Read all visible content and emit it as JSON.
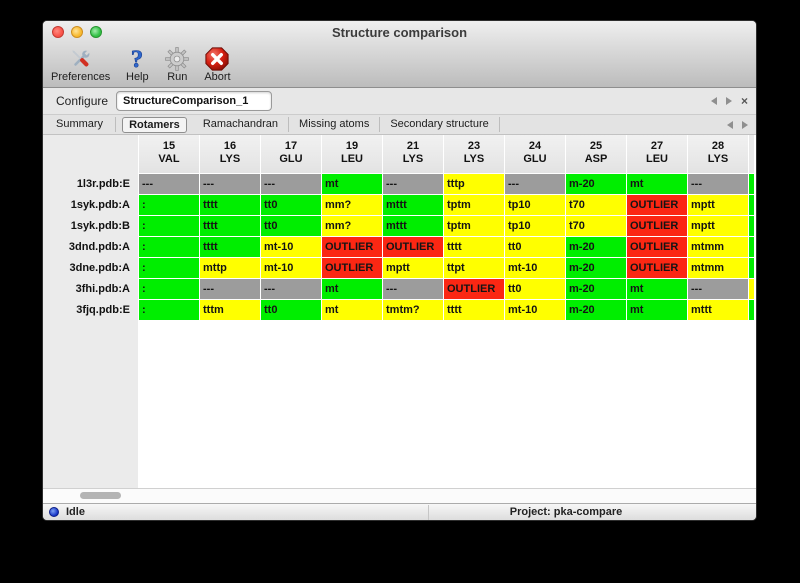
{
  "window": {
    "title": "Structure comparison"
  },
  "toolbar": {
    "items": [
      {
        "label": "Preferences",
        "icon": "tools-icon"
      },
      {
        "label": "Help",
        "icon": "question-icon"
      },
      {
        "label": "Run",
        "icon": "gear-icon"
      },
      {
        "label": "Abort",
        "icon": "abort-icon"
      }
    ]
  },
  "configure": {
    "label": "Configure",
    "value": "StructureComparison_1",
    "close_glyph": "×"
  },
  "tabs": {
    "items": [
      "Summary",
      "Rotamers",
      "Ramachandran",
      "Missing atoms",
      "Secondary structure"
    ],
    "selected": "Rotamers"
  },
  "colors": {
    "green": "#00ee00",
    "yellow": "#ffff00",
    "red": "#fb2713",
    "gray": "#9c9c9c",
    "header": "#e8e8e8"
  },
  "table": {
    "columns": [
      {
        "num": "15",
        "res": "VAL"
      },
      {
        "num": "16",
        "res": "LYS"
      },
      {
        "num": "17",
        "res": "GLU"
      },
      {
        "num": "19",
        "res": "LEU"
      },
      {
        "num": "21",
        "res": "LYS"
      },
      {
        "num": "23",
        "res": "LYS"
      },
      {
        "num": "24",
        "res": "GLU"
      },
      {
        "num": "25",
        "res": "ASP"
      },
      {
        "num": "27",
        "res": "LEU"
      },
      {
        "num": "28",
        "res": "LYS"
      }
    ],
    "rows": [
      {
        "label": "1l3r.pdb:E",
        "cells": [
          {
            "text": "---",
            "color": "gray"
          },
          {
            "text": "---",
            "color": "gray"
          },
          {
            "text": "---",
            "color": "gray"
          },
          {
            "text": "mt",
            "color": "green"
          },
          {
            "text": "---",
            "color": "gray"
          },
          {
            "text": "tttp",
            "color": "yellow"
          },
          {
            "text": "---",
            "color": "gray"
          },
          {
            "text": "m-20",
            "color": "green"
          },
          {
            "text": "mt",
            "color": "green"
          },
          {
            "text": "---",
            "color": "gray"
          }
        ]
      },
      {
        "label": "1syk.pdb:A",
        "cells": [
          {
            "text": ":",
            "color": "green"
          },
          {
            "text": "tttt",
            "color": "green"
          },
          {
            "text": "tt0",
            "color": "green"
          },
          {
            "text": "mm?",
            "color": "yellow"
          },
          {
            "text": "mttt",
            "color": "green"
          },
          {
            "text": "tptm",
            "color": "yellow"
          },
          {
            "text": "tp10",
            "color": "yellow"
          },
          {
            "text": "t70",
            "color": "yellow"
          },
          {
            "text": "OUTLIER",
            "color": "red"
          },
          {
            "text": "mptt",
            "color": "yellow"
          }
        ]
      },
      {
        "label": "1syk.pdb:B",
        "cells": [
          {
            "text": ":",
            "color": "green"
          },
          {
            "text": "tttt",
            "color": "green"
          },
          {
            "text": "tt0",
            "color": "green"
          },
          {
            "text": "mm?",
            "color": "yellow"
          },
          {
            "text": "mttt",
            "color": "green"
          },
          {
            "text": "tptm",
            "color": "yellow"
          },
          {
            "text": "tp10",
            "color": "yellow"
          },
          {
            "text": "t70",
            "color": "yellow"
          },
          {
            "text": "OUTLIER",
            "color": "red"
          },
          {
            "text": "mptt",
            "color": "yellow"
          }
        ]
      },
      {
        "label": "3dnd.pdb:A",
        "cells": [
          {
            "text": ":",
            "color": "green"
          },
          {
            "text": "tttt",
            "color": "green"
          },
          {
            "text": "mt-10",
            "color": "yellow"
          },
          {
            "text": "OUTLIER",
            "color": "red"
          },
          {
            "text": "OUTLIER",
            "color": "red"
          },
          {
            "text": "tttt",
            "color": "yellow"
          },
          {
            "text": "tt0",
            "color": "yellow"
          },
          {
            "text": "m-20",
            "color": "green"
          },
          {
            "text": "OUTLIER",
            "color": "red"
          },
          {
            "text": "mtmm",
            "color": "yellow"
          }
        ]
      },
      {
        "label": "3dne.pdb:A",
        "cells": [
          {
            "text": ":",
            "color": "green"
          },
          {
            "text": "mttp",
            "color": "yellow"
          },
          {
            "text": "mt-10",
            "color": "yellow"
          },
          {
            "text": "OUTLIER",
            "color": "red"
          },
          {
            "text": "mptt",
            "color": "yellow"
          },
          {
            "text": "ttpt",
            "color": "yellow"
          },
          {
            "text": "mt-10",
            "color": "yellow"
          },
          {
            "text": "m-20",
            "color": "green"
          },
          {
            "text": "OUTLIER",
            "color": "red"
          },
          {
            "text": "mtmm",
            "color": "yellow"
          }
        ]
      },
      {
        "label": "3fhi.pdb:A",
        "cells": [
          {
            "text": ":",
            "color": "green"
          },
          {
            "text": "---",
            "color": "gray"
          },
          {
            "text": "---",
            "color": "gray"
          },
          {
            "text": "mt",
            "color": "green"
          },
          {
            "text": "---",
            "color": "gray"
          },
          {
            "text": "OUTLIER",
            "color": "red"
          },
          {
            "text": "tt0",
            "color": "yellow"
          },
          {
            "text": "m-20",
            "color": "green"
          },
          {
            "text": "mt",
            "color": "green"
          },
          {
            "text": "---",
            "color": "gray"
          }
        ]
      },
      {
        "label": "3fjq.pdb:E",
        "cells": [
          {
            "text": ":",
            "color": "green"
          },
          {
            "text": "tttm",
            "color": "yellow"
          },
          {
            "text": "tt0",
            "color": "green"
          },
          {
            "text": "mt",
            "color": "yellow"
          },
          {
            "text": "tmtm?",
            "color": "yellow"
          },
          {
            "text": "tttt",
            "color": "yellow"
          },
          {
            "text": "mt-10",
            "color": "yellow"
          },
          {
            "text": "m-20",
            "color": "green"
          },
          {
            "text": "mt",
            "color": "green"
          },
          {
            "text": "mttt",
            "color": "yellow"
          }
        ]
      }
    ],
    "partial_column": {
      "header_color": "header",
      "cells": [
        "green",
        "green",
        "green",
        "green",
        "green",
        "yellow",
        "green"
      ]
    }
  },
  "status": {
    "state": "Idle",
    "project": "Project: pka-compare"
  }
}
